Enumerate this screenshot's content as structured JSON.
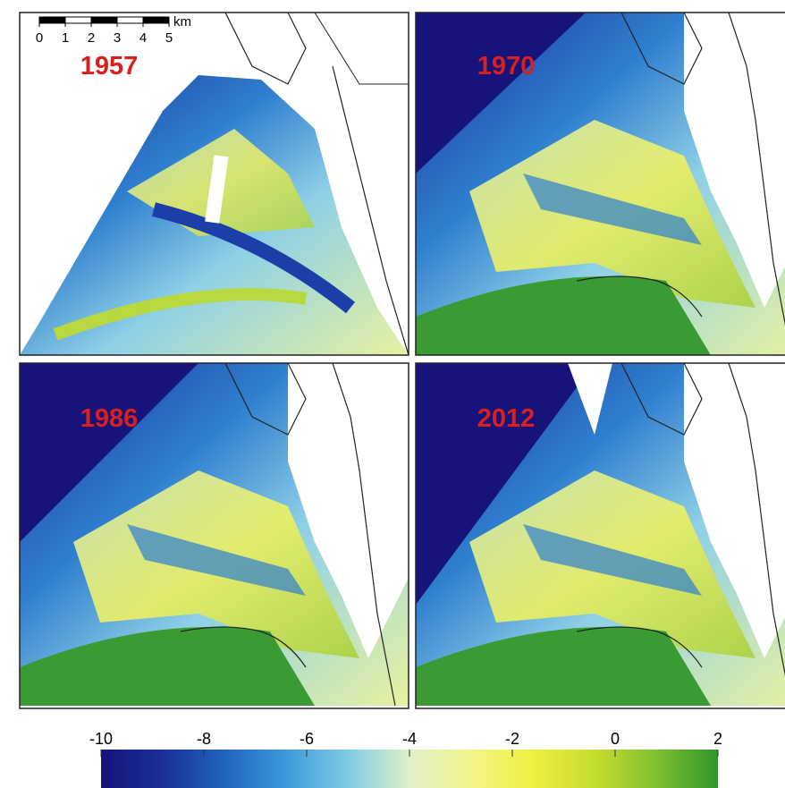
{
  "scale_bar": {
    "labels": [
      0,
      1,
      2,
      3,
      4,
      5
    ],
    "unit": "km"
  },
  "panels": [
    {
      "year": "1957"
    },
    {
      "year": "1970"
    },
    {
      "year": "1986"
    },
    {
      "year": "2012"
    }
  ],
  "colorbar": {
    "lim": [
      -10,
      2
    ],
    "ticks": [
      -10,
      -8,
      -6,
      -4,
      -2,
      0,
      2
    ],
    "colors": [
      "#16137a",
      "#1a2f9a",
      "#1f63c0",
      "#3d9ad8",
      "#7fcbe6",
      "#dff0c8",
      "#f2f48a",
      "#eef040",
      "#c6dc30",
      "#7fc030",
      "#2f962a"
    ]
  }
}
